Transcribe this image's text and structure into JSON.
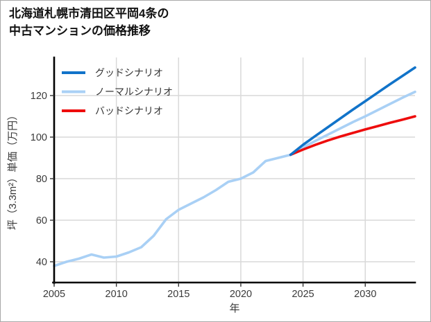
{
  "page": {
    "background": "#ffffff",
    "border_color": "#a8a8a8"
  },
  "title": {
    "line1": "北海道札幌市清田区平岡4条の",
    "line2": "中古マンションの価格推移"
  },
  "chart_data": {
    "type": "line",
    "title": "北海道札幌市清田区平岡4条の中古マンションの価格推移",
    "xlabel": "年",
    "ylabel": "坪（3.3m²）単価（万円）",
    "xlim": [
      2005,
      2034
    ],
    "ylim": [
      30,
      138.33
    ],
    "x_ticks": [
      2005,
      2010,
      2015,
      2020,
      2025,
      2030
    ],
    "y_ticks": [
      40,
      60,
      80,
      100,
      120
    ],
    "grid": true,
    "legend_position": "upper left",
    "colors": {
      "good": "#1173c9",
      "normal": "#a9d0f5",
      "bad": "#ee0c0c",
      "gridline": "#d9d9d9",
      "spine": "#000000"
    },
    "series": [
      {
        "name": "グッドシナリオ",
        "color": "#1173c9",
        "x": [
          2024,
          2025,
          2026,
          2027,
          2028,
          2029,
          2030,
          2031,
          2032,
          2033,
          2034
        ],
        "values": [
          91.5,
          96.3,
          100.6,
          104.8,
          109.0,
          113.2,
          117.3,
          121.4,
          125.5,
          129.5,
          133.5
        ]
      },
      {
        "name": "ノーマルシナリオ",
        "color": "#a9d0f5",
        "x": [
          2005,
          2006,
          2007,
          2008,
          2009,
          2010,
          2011,
          2012,
          2013,
          2014,
          2015,
          2016,
          2017,
          2018,
          2019,
          2020,
          2021,
          2022,
          2023,
          2024,
          2025,
          2026,
          2027,
          2028,
          2029,
          2030,
          2031,
          2032,
          2033,
          2034
        ],
        "values": [
          38,
          40,
          41.5,
          43.5,
          42,
          42.5,
          44.5,
          47,
          52.5,
          60.5,
          65,
          68,
          71,
          74.5,
          78.5,
          80,
          83,
          88.5,
          90,
          91.5,
          95,
          98.2,
          101.2,
          104.2,
          107.2,
          110,
          113,
          116,
          119,
          121.8
        ]
      },
      {
        "name": "バッドシナリオ",
        "color": "#ee0c0c",
        "x": [
          2024,
          2025,
          2026,
          2027,
          2028,
          2029,
          2030,
          2031,
          2032,
          2033,
          2034
        ],
        "values": [
          91.5,
          94.0,
          96.3,
          98.4,
          100.3,
          102.0,
          103.7,
          105.3,
          106.9,
          108.4,
          110.0
        ]
      }
    ]
  }
}
